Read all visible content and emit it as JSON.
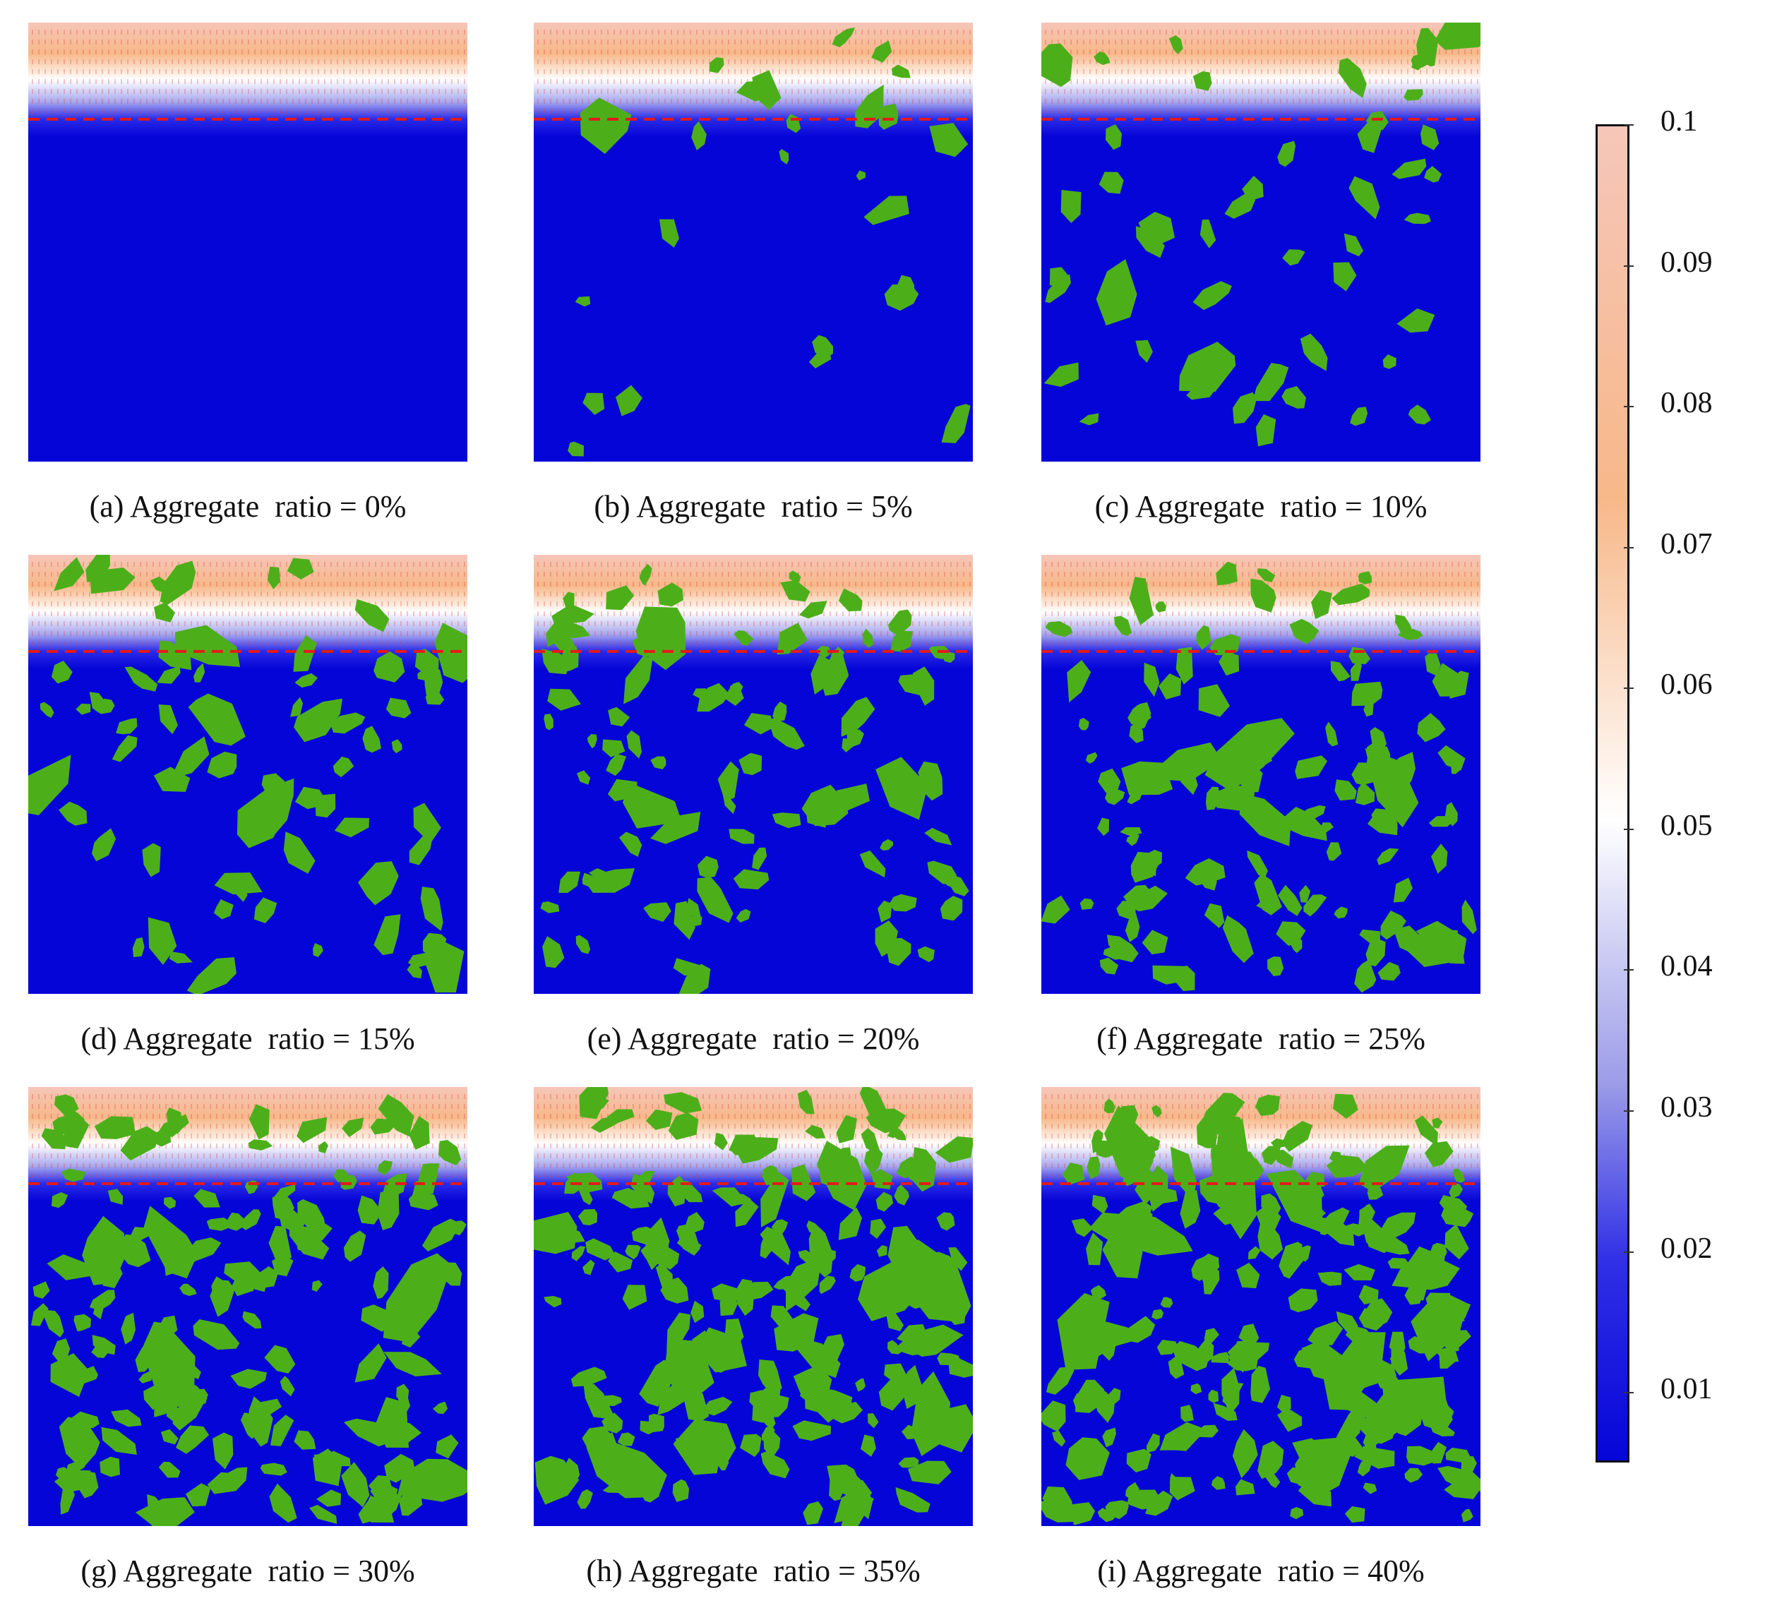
{
  "panels": [
    {
      "id": "a",
      "caption": "(a) Aggregate  ratio = 0%",
      "aggregate_ratio_percent": 0,
      "count": 0
    },
    {
      "id": "b",
      "caption": "(b) Aggregate  ratio = 5%",
      "aggregate_ratio_percent": 5,
      "count": 26
    },
    {
      "id": "c",
      "caption": "(c) Aggregate  ratio = 10%",
      "aggregate_ratio_percent": 10,
      "count": 48
    },
    {
      "id": "d",
      "caption": "(d) Aggregate  ratio = 15%",
      "aggregate_ratio_percent": 15,
      "count": 70
    },
    {
      "id": "e",
      "caption": "(e) Aggregate  ratio = 20%",
      "aggregate_ratio_percent": 20,
      "count": 95
    },
    {
      "id": "f",
      "caption": "(f) Aggregate  ratio = 25%",
      "aggregate_ratio_percent": 25,
      "count": 120
    },
    {
      "id": "g",
      "caption": "(g) Aggregate  ratio = 30%",
      "aggregate_ratio_percent": 30,
      "count": 150
    },
    {
      "id": "h",
      "caption": "(h) Aggregate  ratio = 35%",
      "aggregate_ratio_percent": 35,
      "count": 175
    },
    {
      "id": "i",
      "caption": "(i) Aggregate  ratio = 40%",
      "aggregate_ratio_percent": 40,
      "count": 210
    }
  ],
  "colorbar": {
    "min": 0.005,
    "max": 0.1,
    "tick_labels": [
      "0.1",
      "0.09",
      "0.08",
      "0.07",
      "0.06",
      "0.05",
      "0.04",
      "0.03",
      "0.02",
      "0.01"
    ]
  },
  "colors": {
    "aggregate": "#4caf1a",
    "low": "#0505d8",
    "mid": "#ffffff",
    "high": "#f6c6b9",
    "orange": "#f7b889",
    "dashed_line": "#e41a1a",
    "arrows": "#e83a3a"
  },
  "icons": [
    "aggregate-particle",
    "flux-arrow",
    "dashed-reference-line"
  ]
}
